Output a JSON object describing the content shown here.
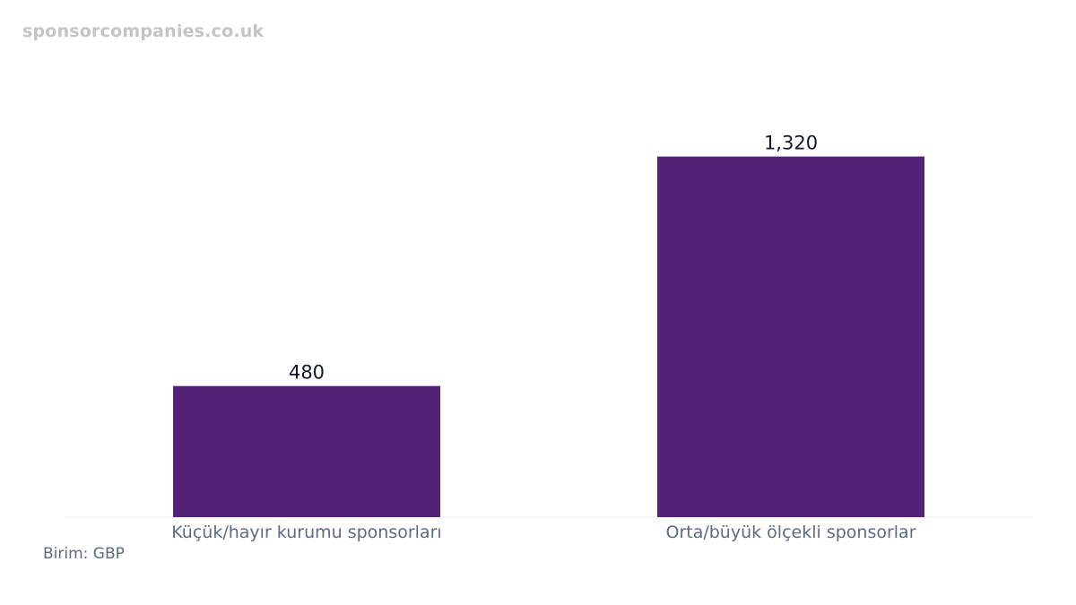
{
  "watermark": "sponsorcompanies.co.uk",
  "unit_note": "Birim: GBP",
  "colors": {
    "bar": "#532276",
    "value_label": "#111827",
    "category_label": "#5d6b82",
    "baseline": "#eef0f3",
    "watermark": "#c4c4c4"
  },
  "chart_data": {
    "type": "bar",
    "categories": [
      "Küçük/hayır kurumu sponsorları",
      "Orta/büyük ölçekli sponsorlar"
    ],
    "values": [
      480,
      1320
    ],
    "value_labels": [
      "480",
      "1,320"
    ],
    "title": "",
    "xlabel": "",
    "ylabel": "",
    "ylim": [
      0,
      1450
    ],
    "grid": false,
    "legend": "none"
  }
}
